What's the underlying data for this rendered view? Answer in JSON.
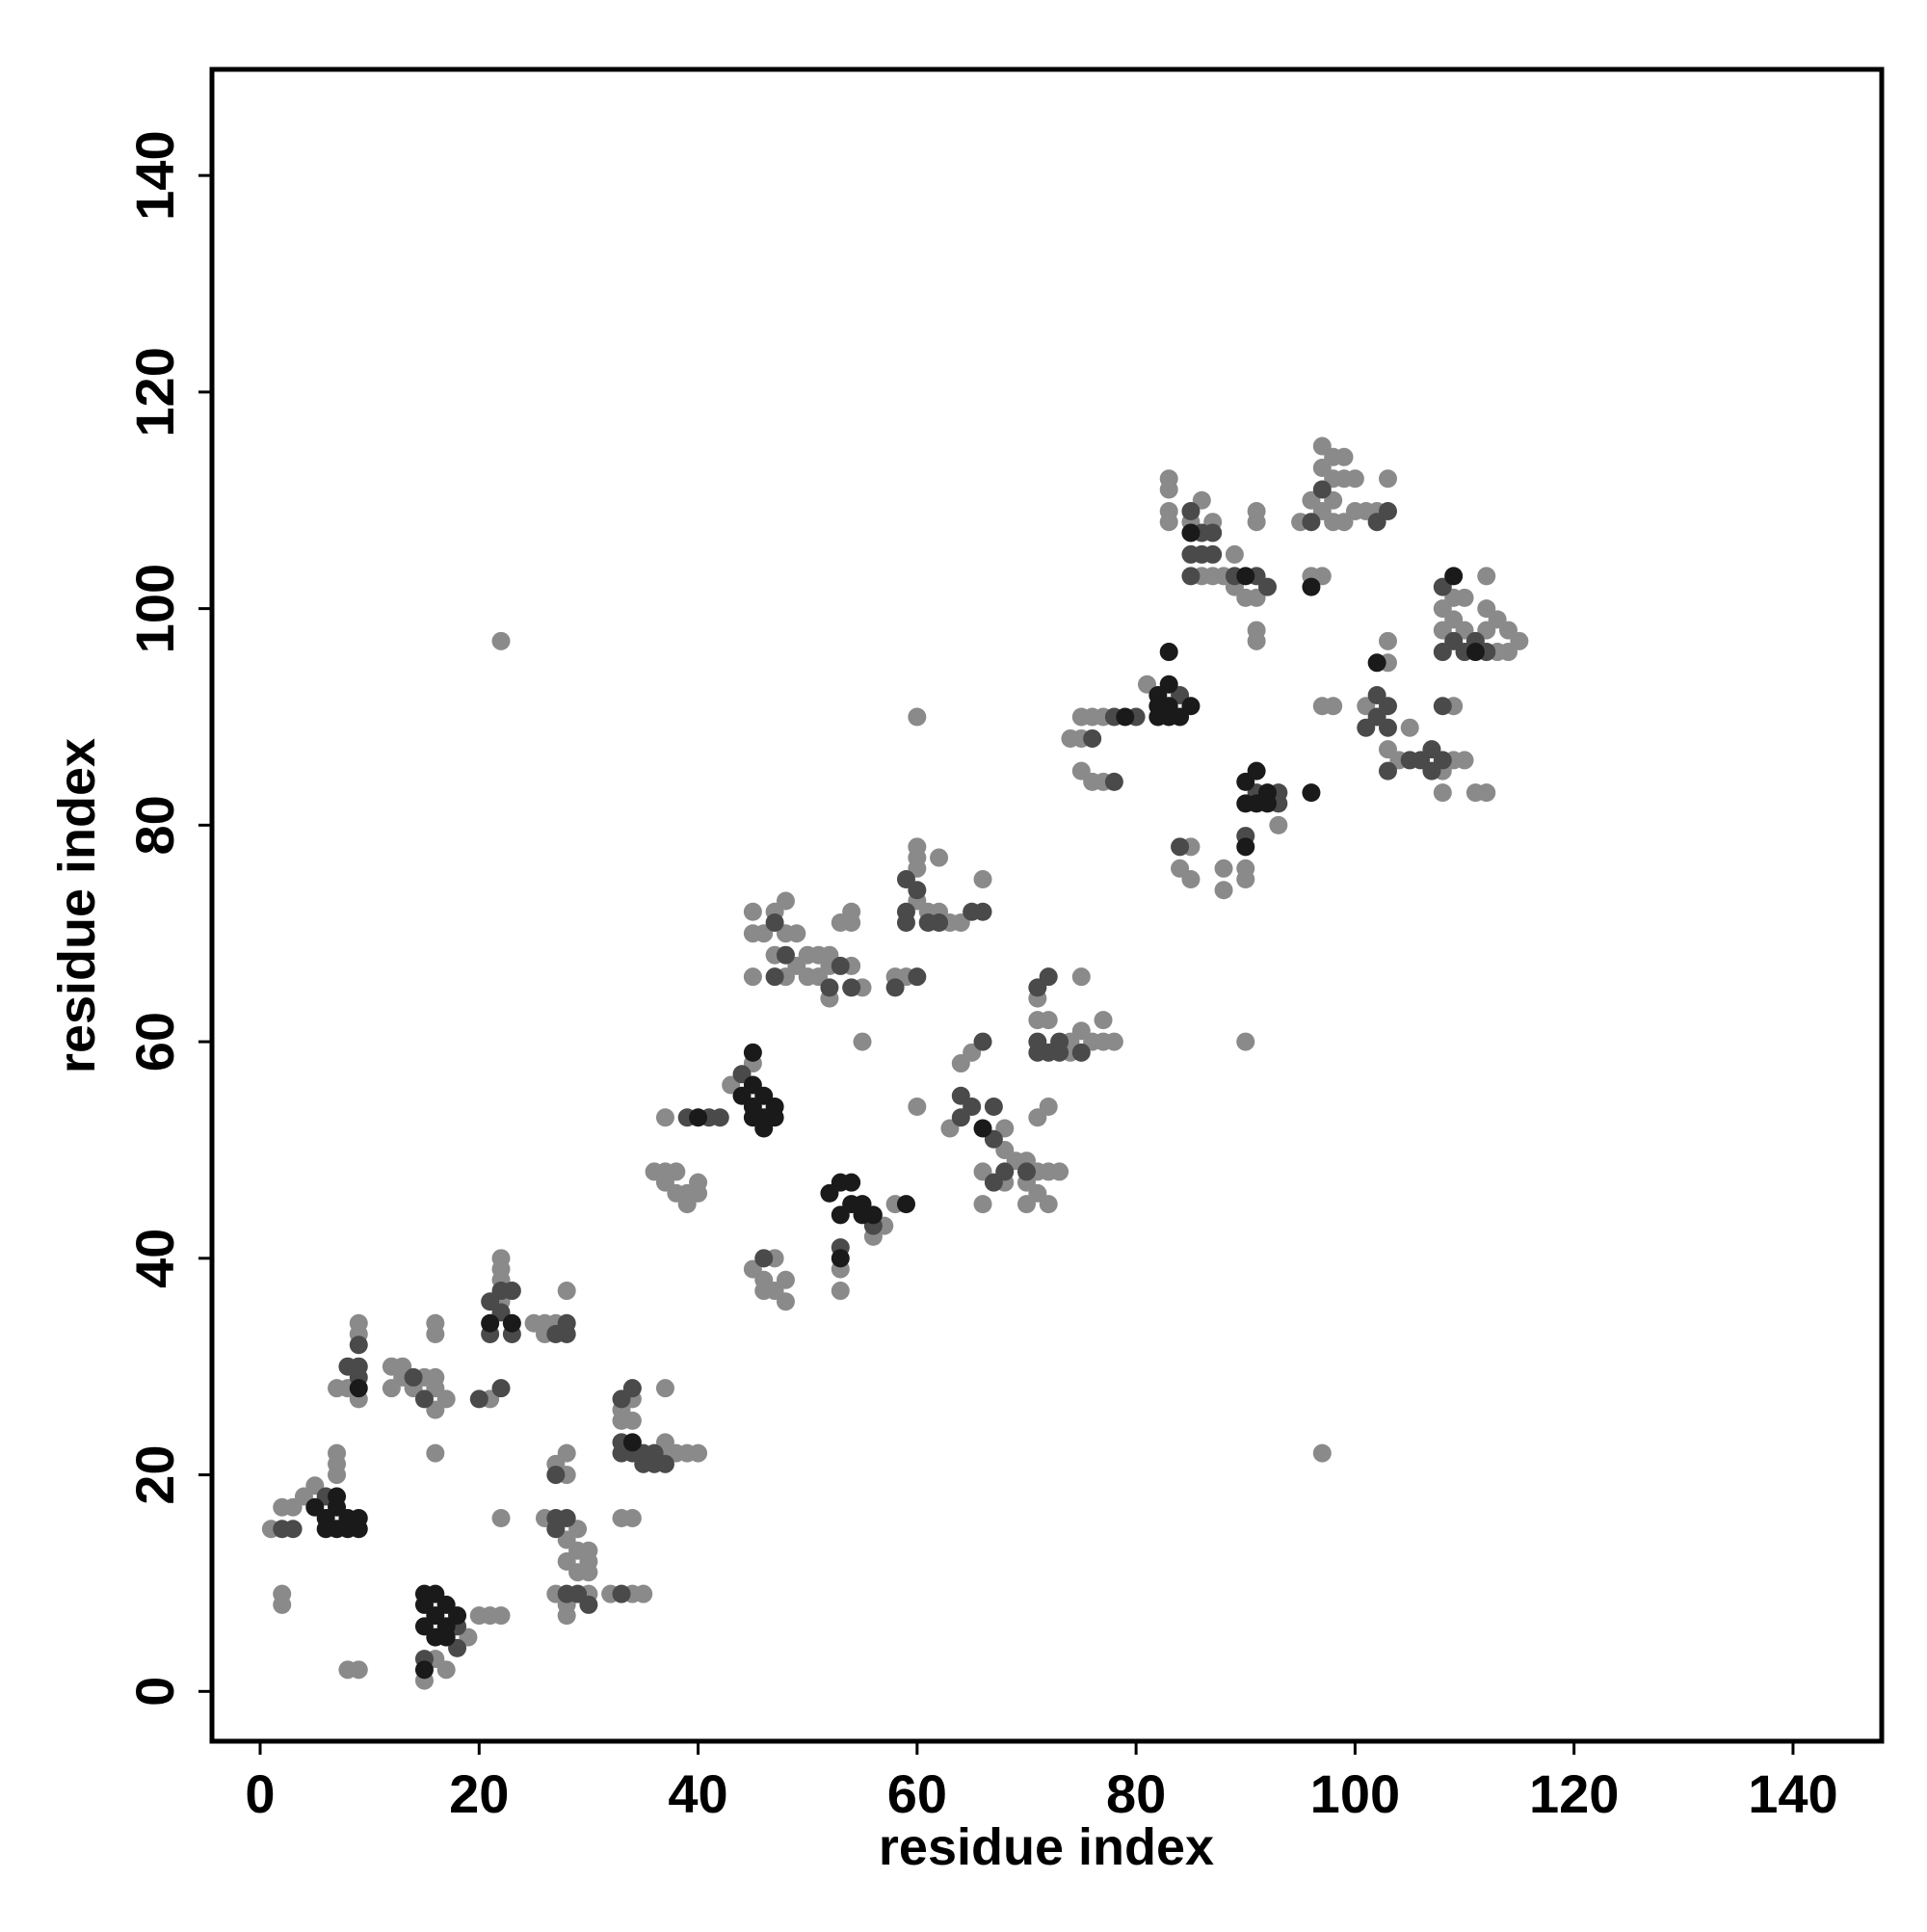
{
  "chart_data": {
    "type": "scatter",
    "xlabel": "residue index",
    "ylabel": "residue index",
    "xlim": [
      -4.4,
      148.1
    ],
    "ylim": [
      -4.6,
      149.8
    ],
    "xticks": [
      0,
      20,
      40,
      60,
      80,
      100,
      120,
      140
    ],
    "yticks": [
      0,
      20,
      40,
      60,
      80,
      100,
      120,
      140
    ],
    "series": [
      {
        "color": "#8a8a8a",
        "x": [
          1,
          2,
          3,
          4,
          5,
          7,
          7,
          7,
          2,
          2,
          8,
          9,
          7,
          8,
          9,
          9,
          9,
          12,
          12,
          13,
          13,
          14,
          15,
          16,
          16,
          16,
          17,
          16,
          16,
          16,
          19,
          15,
          16,
          17,
          20,
          21,
          22,
          22,
          21,
          22,
          22,
          22,
          22,
          25,
          26,
          26,
          27,
          28,
          26,
          27,
          28,
          28,
          28,
          28,
          29,
          29,
          29,
          30,
          30,
          30,
          27,
          28,
          28,
          30,
          32,
          34,
          35,
          33,
          34,
          33,
          33,
          34,
          34,
          37,
          37,
          37,
          38,
          39,
          40,
          37,
          36,
          37,
          37,
          38,
          38,
          39,
          39,
          40,
          40,
          43,
          45,
          45,
          46,
          47,
          47,
          48,
          48,
          46,
          45,
          45,
          45,
          46,
          47,
          47,
          48,
          48,
          48,
          49,
          49,
          50,
          50,
          51,
          51,
          52,
          52,
          57,
          58,
          53,
          53,
          56,
          52,
          53,
          54,
          54,
          54,
          55,
          55,
          58,
          59,
          60,
          60,
          60,
          60,
          60,
          60,
          61,
          62,
          62,
          63,
          64,
          66,
          63,
          64,
          65,
          66,
          66,
          68,
          68,
          68,
          69,
          70,
          70,
          70,
          71,
          71,
          72,
          72,
          73,
          71,
          72,
          71,
          71,
          72,
          74,
          74,
          75,
          75,
          76,
          77,
          77,
          78,
          74,
          75,
          75,
          75,
          76,
          76,
          77,
          77,
          81,
          84,
          85,
          85,
          83,
          83,
          83,
          83,
          85,
          86,
          86,
          87,
          87,
          88,
          89,
          89,
          90,
          91,
          91,
          91,
          91,
          91,
          88,
          88,
          90,
          90,
          93,
          90,
          95,
          96,
          96,
          97,
          97,
          97,
          97,
          98,
          98,
          98,
          98,
          99,
          99,
          99,
          100,
          100,
          101,
          102,
          103,
          97,
          98,
          101,
          103,
          103,
          103,
          104,
          105,
          108,
          108,
          109,
          109,
          110,
          111,
          112,
          108,
          108,
          109,
          109,
          110,
          110,
          112,
          112,
          112,
          113,
          113,
          114,
          114,
          115,
          97,
          22
        ],
        "values": [
          15,
          17,
          17,
          18,
          19,
          20,
          22,
          21,
          9,
          8,
          2,
          2,
          28,
          28,
          34,
          33,
          27,
          30,
          28,
          29,
          30,
          28,
          29,
          28,
          26,
          29,
          27,
          34,
          33,
          22,
          5,
          1,
          3,
          2,
          7,
          7,
          7,
          16,
          27,
          40,
          39,
          38,
          36,
          34,
          34,
          33,
          34,
          37,
          16,
          21,
          22,
          20,
          14,
          12,
          15,
          13,
          11,
          13,
          12,
          11,
          9,
          8,
          7,
          9,
          9,
          9,
          9,
          16,
          16,
          26,
          25,
          27,
          25,
          22,
          23,
          28,
          22,
          22,
          22,
          53,
          48,
          48,
          47,
          48,
          46,
          46,
          45,
          47,
          46,
          56,
          58,
          39,
          38,
          40,
          37,
          38,
          36,
          37,
          72,
          70,
          66,
          70,
          72,
          68,
          73,
          70,
          66,
          70,
          67,
          68,
          66,
          68,
          66,
          67,
          68,
          43,
          45,
          39,
          37,
          42,
          64,
          71,
          72,
          71,
          67,
          65,
          60,
          66,
          66,
          54,
          90,
          78,
          77,
          76,
          73,
          72,
          77,
          72,
          71,
          71,
          75,
          52,
          58,
          59,
          48,
          45,
          52,
          50,
          47,
          49,
          49,
          47,
          45,
          48,
          46,
          48,
          45,
          48,
          53,
          54,
          64,
          62,
          62,
          59,
          60,
          61,
          66,
          60,
          62,
          60,
          60,
          88,
          90,
          88,
          85,
          90,
          84,
          90,
          84,
          93,
          76,
          78,
          75,
          112,
          111,
          109,
          108,
          108,
          110,
          103,
          103,
          108,
          103,
          105,
          102,
          101,
          109,
          108,
          101,
          98,
          97,
          76,
          74,
          76,
          75,
          80,
          60,
          108,
          110,
          103,
          115,
          113,
          109,
          103,
          114,
          112,
          110,
          108,
          114,
          112,
          108,
          112,
          109,
          109,
          109,
          112,
          91,
          91,
          91,
          97,
          95,
          87,
          86,
          89,
          85,
          83,
          86,
          91,
          86,
          83,
          83,
          100,
          98,
          101,
          99,
          101,
          98,
          103,
          100,
          98,
          99,
          96,
          98,
          96,
          97,
          22,
          97
        ]
      },
      {
        "color": "#4a4a4a",
        "x": [
          2,
          3,
          6,
          8,
          9,
          9,
          9,
          14,
          15,
          18,
          18,
          15,
          20,
          22,
          21,
          21,
          22,
          22,
          23,
          23,
          27,
          28,
          28,
          27,
          27,
          27,
          28,
          28,
          29,
          30,
          33,
          33,
          33,
          33,
          34,
          34,
          35,
          35,
          36,
          36,
          37,
          39,
          41,
          42,
          44,
          46,
          47,
          47,
          48,
          56,
          53,
          52,
          53,
          54,
          58,
          60,
          59,
          59,
          59,
          60,
          61,
          62,
          65,
          66,
          64,
          64,
          65,
          66,
          67,
          67,
          67,
          68,
          70,
          71,
          71,
          71,
          72,
          72,
          73,
          73,
          75,
          76,
          78,
          78,
          80,
          84,
          84,
          85,
          85,
          85,
          86,
          86,
          87,
          87,
          89,
          91,
          92,
          90,
          91,
          93,
          93,
          96,
          97,
          102,
          103,
          101,
          102,
          102,
          103,
          103,
          103,
          105,
          106,
          107,
          107,
          108,
          108,
          108,
          108,
          109,
          110,
          111,
          112
        ],
        "values": [
          15,
          15,
          18,
          30,
          32,
          30,
          29,
          29,
          27,
          6,
          4,
          3,
          27,
          28,
          36,
          33,
          37,
          35,
          37,
          33,
          33,
          34,
          33,
          20,
          16,
          15,
          16,
          9,
          9,
          8,
          9,
          27,
          23,
          22,
          28,
          22,
          22,
          21,
          22,
          21,
          21,
          53,
          53,
          53,
          57,
          40,
          71,
          66,
          68,
          43,
          41,
          65,
          67,
          65,
          65,
          66,
          75,
          72,
          71,
          74,
          71,
          71,
          72,
          72,
          53,
          55,
          54,
          60,
          54,
          51,
          47,
          48,
          48,
          65,
          60,
          59,
          66,
          59,
          60,
          59,
          59,
          88,
          90,
          84,
          90,
          92,
          78,
          109,
          105,
          103,
          107,
          105,
          107,
          105,
          103,
          103,
          102,
          79,
          83,
          83,
          82,
          108,
          111,
          108,
          109,
          89,
          92,
          90,
          91,
          89,
          85,
          86,
          86,
          87,
          85,
          86,
          91,
          102,
          96,
          97,
          96,
          97,
          96
        ]
      },
      {
        "color": "#1a1a1a",
        "x": [
          5,
          6,
          6,
          7,
          7,
          7,
          8,
          8,
          9,
          9,
          9,
          15,
          16,
          15,
          16,
          15,
          17,
          16,
          17,
          18,
          15,
          17,
          21,
          23,
          34,
          40,
          44,
          45,
          45,
          45,
          46,
          46,
          46,
          47,
          47,
          45,
          52,
          53,
          53,
          54,
          54,
          55,
          55,
          56,
          59,
          53,
          66,
          79,
          82,
          82,
          82,
          83,
          83,
          83,
          83,
          84,
          85,
          85,
          90,
          90,
          90,
          90,
          91,
          91,
          92,
          92,
          96,
          96,
          102,
          109,
          111
        ],
        "values": [
          17,
          16,
          15,
          18,
          17,
          15,
          16,
          15,
          16,
          15,
          28,
          9,
          9,
          8,
          7,
          6,
          6,
          5,
          5,
          7,
          2,
          8,
          34,
          34,
          23,
          53,
          55,
          56,
          54,
          53,
          55,
          53,
          52,
          54,
          53,
          59,
          46,
          47,
          44,
          47,
          45,
          44,
          45,
          44,
          45,
          40,
          52,
          90,
          92,
          90,
          91,
          96,
          93,
          91,
          90,
          90,
          91,
          107,
          103,
          78,
          82,
          84,
          85,
          82,
          83,
          82,
          83,
          102,
          95,
          103,
          96
        ]
      }
    ]
  }
}
